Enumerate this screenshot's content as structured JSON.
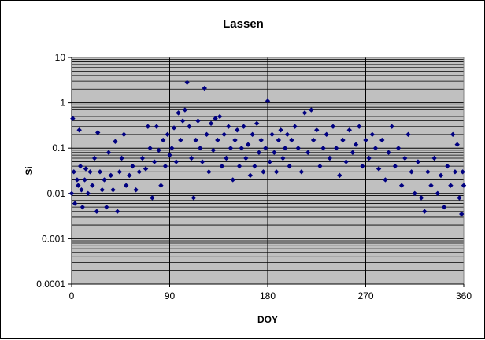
{
  "chart_data": {
    "type": "scatter",
    "title": "Lassen",
    "xlabel": "DOY",
    "ylabel": "Si",
    "x_scale": "linear",
    "y_scale": "log",
    "xlim": [
      0,
      360
    ],
    "ylim": [
      0.0001,
      10
    ],
    "x_ticks": [
      "0",
      "90",
      "180",
      "270",
      "360"
    ],
    "y_ticks": [
      "0.0001",
      "0.001",
      "0.01",
      "0.1",
      "1",
      "10"
    ],
    "grid": "major and minor horizontal, major vertical",
    "legend": "none",
    "colors": {
      "plot_background": "#c0c0c0",
      "marker": "#000080",
      "gridline": "#000000"
    },
    "series": [
      {
        "marker": "diamond",
        "points": [
          [
            0,
            0.01
          ],
          [
            1,
            0.45
          ],
          [
            2,
            0.03
          ],
          [
            3,
            0.006
          ],
          [
            5,
            0.02
          ],
          [
            6,
            0.015
          ],
          [
            7,
            0.25
          ],
          [
            8,
            0.04
          ],
          [
            9,
            0.012
          ],
          [
            10,
            0.005
          ],
          [
            12,
            0.02
          ],
          [
            13,
            0.035
          ],
          [
            15,
            0.01
          ],
          [
            17,
            0.03
          ],
          [
            19,
            0.015
          ],
          [
            21,
            0.06
          ],
          [
            23,
            0.004
          ],
          [
            24,
            0.22
          ],
          [
            26,
            0.03
          ],
          [
            28,
            0.012
          ],
          [
            30,
            0.02
          ],
          [
            32,
            0.005
          ],
          [
            34,
            0.08
          ],
          [
            36,
            0.025
          ],
          [
            38,
            0.012
          ],
          [
            40,
            0.14
          ],
          [
            42,
            0.004
          ],
          [
            44,
            0.03
          ],
          [
            46,
            0.06
          ],
          [
            48,
            0.2
          ],
          [
            50,
            0.015
          ],
          [
            53,
            0.025
          ],
          [
            56,
            0.04
          ],
          [
            59,
            0.012
          ],
          [
            62,
            0.03
          ],
          [
            65,
            0.06
          ],
          [
            68,
            0.035
          ],
          [
            70,
            0.3
          ],
          [
            72,
            0.1
          ],
          [
            74,
            0.008
          ],
          [
            76,
            0.05
          ],
          [
            78,
            0.3
          ],
          [
            80,
            0.09
          ],
          [
            82,
            0.015
          ],
          [
            84,
            0.15
          ],
          [
            86,
            0.04
          ],
          [
            88,
            0.2
          ],
          [
            90,
            0.07
          ],
          [
            92,
            0.1
          ],
          [
            94,
            0.28
          ],
          [
            96,
            0.05
          ],
          [
            98,
            0.6
          ],
          [
            100,
            0.15
          ],
          [
            102,
            0.4
          ],
          [
            104,
            0.7
          ],
          [
            106,
            2.8
          ],
          [
            108,
            0.3
          ],
          [
            110,
            0.06
          ],
          [
            112,
            0.008
          ],
          [
            114,
            0.15
          ],
          [
            116,
            0.4
          ],
          [
            118,
            0.1
          ],
          [
            120,
            0.05
          ],
          [
            122,
            2.1
          ],
          [
            124,
            0.2
          ],
          [
            126,
            0.03
          ],
          [
            128,
            0.35
          ],
          [
            130,
            0.09
          ],
          [
            132,
            0.45
          ],
          [
            134,
            0.15
          ],
          [
            136,
            0.5
          ],
          [
            138,
            0.04
          ],
          [
            140,
            0.2
          ],
          [
            142,
            0.06
          ],
          [
            144,
            0.3
          ],
          [
            146,
            0.1
          ],
          [
            148,
            0.02
          ],
          [
            150,
            0.15
          ],
          [
            152,
            0.25
          ],
          [
            154,
            0.04
          ],
          [
            156,
            0.1
          ],
          [
            158,
            0.3
          ],
          [
            160,
            0.06
          ],
          [
            162,
            0.12
          ],
          [
            164,
            0.025
          ],
          [
            166,
            0.2
          ],
          [
            168,
            0.04
          ],
          [
            170,
            0.35
          ],
          [
            172,
            0.08
          ],
          [
            174,
            0.15
          ],
          [
            176,
            0.03
          ],
          [
            178,
            0.1
          ],
          [
            180,
            1.1
          ],
          [
            182,
            0.05
          ],
          [
            184,
            0.2
          ],
          [
            186,
            0.08
          ],
          [
            188,
            0.03
          ],
          [
            190,
            0.15
          ],
          [
            192,
            0.25
          ],
          [
            194,
            0.06
          ],
          [
            196,
            0.1
          ],
          [
            198,
            0.2
          ],
          [
            200,
            0.04
          ],
          [
            202,
            0.15
          ],
          [
            205,
            0.3
          ],
          [
            208,
            0.1
          ],
          [
            211,
            0.03
          ],
          [
            214,
            0.6
          ],
          [
            217,
            0.08
          ],
          [
            220,
            0.7
          ],
          [
            222,
            0.15
          ],
          [
            225,
            0.25
          ],
          [
            228,
            0.04
          ],
          [
            231,
            0.1
          ],
          [
            234,
            0.2
          ],
          [
            237,
            0.06
          ],
          [
            240,
            0.3
          ],
          [
            243,
            0.1
          ],
          [
            246,
            0.025
          ],
          [
            249,
            0.15
          ],
          [
            252,
            0.05
          ],
          [
            255,
            0.25
          ],
          [
            258,
            0.08
          ],
          [
            261,
            0.12
          ],
          [
            264,
            0.3
          ],
          [
            267,
            0.04
          ],
          [
            270,
            0.15
          ],
          [
            273,
            0.06
          ],
          [
            276,
            0.2
          ],
          [
            279,
            0.1
          ],
          [
            282,
            0.035
          ],
          [
            285,
            0.15
          ],
          [
            288,
            0.02
          ],
          [
            291,
            0.08
          ],
          [
            294,
            0.3
          ],
          [
            297,
            0.04
          ],
          [
            300,
            0.1
          ],
          [
            303,
            0.015
          ],
          [
            306,
            0.06
          ],
          [
            309,
            0.2
          ],
          [
            312,
            0.03
          ],
          [
            315,
            0.01
          ],
          [
            318,
            0.05
          ],
          [
            321,
            0.008
          ],
          [
            324,
            0.004
          ],
          [
            327,
            0.03
          ],
          [
            330,
            0.015
          ],
          [
            333,
            0.06
          ],
          [
            336,
            0.01
          ],
          [
            339,
            0.025
          ],
          [
            342,
            0.005
          ],
          [
            345,
            0.04
          ],
          [
            348,
            0.015
          ],
          [
            350,
            0.2
          ],
          [
            352,
            0.03
          ],
          [
            354,
            0.12
          ],
          [
            356,
            0.008
          ],
          [
            358,
            0.0035
          ],
          [
            359,
            0.03
          ],
          [
            360,
            0.015
          ]
        ]
      }
    ]
  }
}
